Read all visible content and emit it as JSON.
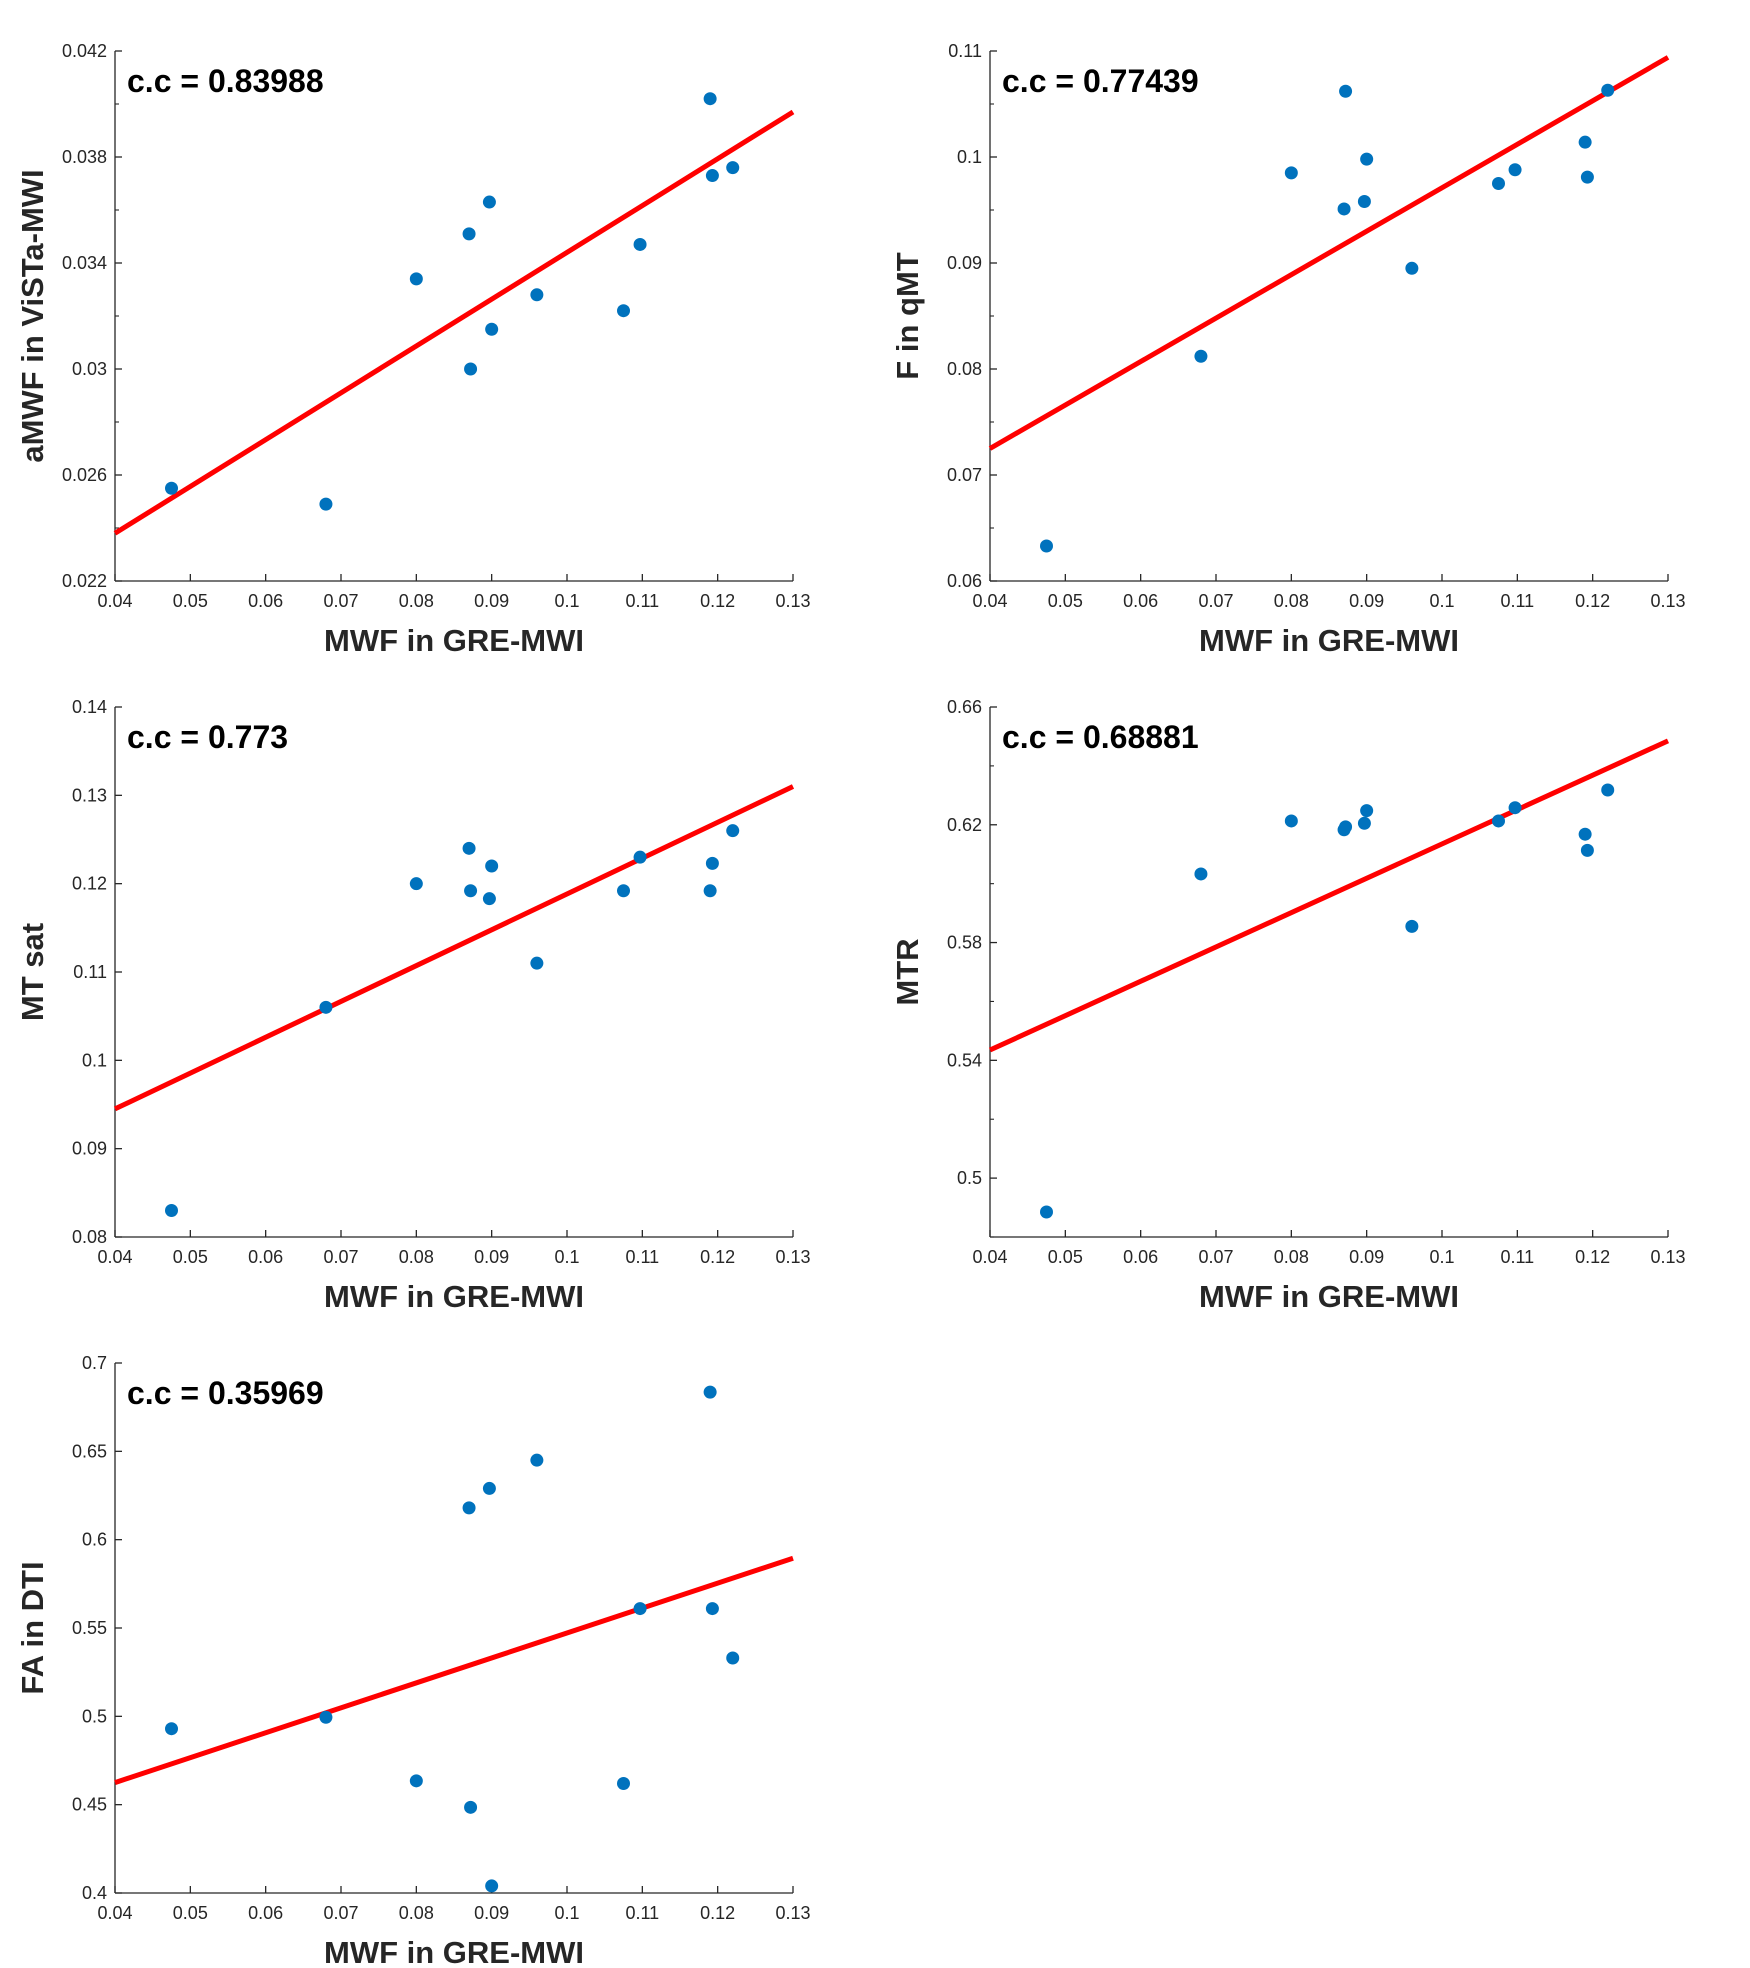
{
  "colors": {
    "point": "#0072BD",
    "fit": "#FF0000",
    "axis": "#262626"
  },
  "x_values": [
    0.0475,
    0.068,
    0.08,
    0.087,
    0.0872,
    0.0897,
    0.09,
    0.096,
    0.1075,
    0.1097,
    0.119,
    0.1193,
    0.122
  ],
  "chart_data": [
    {
      "type": "scatter",
      "title": "",
      "annotation": "c.c = 0.83988",
      "xlabel": "MWF in GRE-MWI",
      "ylabel": "aMWF in ViSTa-MWI",
      "xlim": [
        0.04,
        0.13
      ],
      "ylim": [
        0.022,
        0.042
      ],
      "xticks": [
        0.04,
        0.05,
        0.06,
        0.07,
        0.08,
        0.09,
        0.1,
        0.11,
        0.12,
        0.13
      ],
      "xtick_labels": [
        "0.04",
        "0.05",
        "0.06",
        "0.07",
        "0.08",
        "0.09",
        "0.1",
        "0.11",
        "0.12",
        "0.13"
      ],
      "yticks": [
        0.022,
        0.026,
        0.03,
        0.034,
        0.038,
        0.042
      ],
      "ytick_labels": [
        "0.022",
        "0.026",
        "0.03",
        "0.034",
        "0.038",
        "0.042"
      ],
      "yminor": [
        0.024,
        0.028,
        0.032,
        0.036,
        0.04
      ],
      "y": [
        0.0255,
        0.0249,
        0.0334,
        0.0351,
        0.03,
        0.0363,
        0.0315,
        0.0328,
        0.0322,
        0.0347,
        0.0402,
        0.0373,
        0.0376
      ],
      "fit": [
        [
          0.04,
          0.0238
        ],
        [
          0.13,
          0.0397
        ]
      ]
    },
    {
      "type": "scatter",
      "title": "",
      "annotation": "c.c = 0.77439",
      "xlabel": "MWF in GRE-MWI",
      "ylabel": "F in qMT",
      "xlim": [
        0.04,
        0.13
      ],
      "ylim": [
        0.06,
        0.11
      ],
      "xticks": [
        0.04,
        0.05,
        0.06,
        0.07,
        0.08,
        0.09,
        0.1,
        0.11,
        0.12,
        0.13
      ],
      "xtick_labels": [
        "0.04",
        "0.05",
        "0.06",
        "0.07",
        "0.08",
        "0.09",
        "0.1",
        "0.11",
        "0.12",
        "0.13"
      ],
      "yticks": [
        0.06,
        0.07,
        0.08,
        0.09,
        0.1,
        0.11
      ],
      "ytick_labels": [
        "0.06",
        "0.07",
        "0.08",
        "0.09",
        "0.1",
        "0.11"
      ],
      "yminor": [
        0.065,
        0.075,
        0.085,
        0.095,
        0.105
      ],
      "y": [
        0.0633,
        0.0812,
        0.0985,
        0.0951,
        0.1062,
        0.0958,
        0.0998,
        0.0895,
        0.0975,
        0.0988,
        0.1014,
        0.0981,
        0.1063
      ],
      "fit": [
        [
          0.04,
          0.0725
        ],
        [
          0.13,
          0.1094
        ]
      ]
    },
    {
      "type": "scatter",
      "title": "",
      "annotation": "c.c = 0.773",
      "xlabel": "MWF in GRE-MWI",
      "ylabel": "MT sat",
      "xlim": [
        0.04,
        0.13
      ],
      "ylim": [
        0.08,
        0.14
      ],
      "xticks": [
        0.04,
        0.05,
        0.06,
        0.07,
        0.08,
        0.09,
        0.1,
        0.11,
        0.12,
        0.13
      ],
      "xtick_labels": [
        "0.04",
        "0.05",
        "0.06",
        "0.07",
        "0.08",
        "0.09",
        "0.1",
        "0.11",
        "0.12",
        "0.13"
      ],
      "yticks": [
        0.08,
        0.09,
        0.1,
        0.11,
        0.12,
        0.13,
        0.14
      ],
      "ytick_labels": [
        "0.08",
        "0.09",
        "0.1",
        "0.11",
        "0.12",
        "0.13",
        "0.14"
      ],
      "yminor": [],
      "y": [
        0.083,
        0.106,
        0.12,
        0.124,
        0.1192,
        0.1183,
        0.122,
        0.111,
        0.1192,
        0.123,
        0.1192,
        0.1223,
        0.126
      ],
      "fit": [
        [
          0.04,
          0.0945
        ],
        [
          0.13,
          0.131
        ]
      ]
    },
    {
      "type": "scatter",
      "title": "",
      "annotation": "c.c = 0.68881",
      "xlabel": "MWF in GRE-MWI",
      "ylabel": "MTR",
      "xlim": [
        0.04,
        0.13
      ],
      "ylim": [
        0.48,
        0.66
      ],
      "xticks": [
        0.04,
        0.05,
        0.06,
        0.07,
        0.08,
        0.09,
        0.1,
        0.11,
        0.12,
        0.13
      ],
      "xtick_labels": [
        "0.04",
        "0.05",
        "0.06",
        "0.07",
        "0.08",
        "0.09",
        "0.1",
        "0.11",
        "0.12",
        "0.13"
      ],
      "yticks": [
        0.5,
        0.54,
        0.58,
        0.62,
        0.66
      ],
      "ytick_labels": [
        "0.5",
        "0.54",
        "0.58",
        "0.62",
        "0.66"
      ],
      "yminor": [
        0.48,
        0.52,
        0.56,
        0.6,
        0.64
      ],
      "y": [
        0.4885,
        0.6033,
        0.6213,
        0.6183,
        0.6193,
        0.6205,
        0.6248,
        0.5855,
        0.6213,
        0.6258,
        0.6168,
        0.6113,
        0.6318
      ],
      "fit": [
        [
          0.04,
          0.5435
        ],
        [
          0.13,
          0.6485
        ]
      ]
    },
    {
      "type": "scatter",
      "title": "",
      "annotation": "c.c = 0.35969",
      "xlabel": "MWF in GRE-MWI",
      "ylabel": "FA in DTI",
      "xlim": [
        0.04,
        0.13
      ],
      "ylim": [
        0.4,
        0.7
      ],
      "xticks": [
        0.04,
        0.05,
        0.06,
        0.07,
        0.08,
        0.09,
        0.1,
        0.11,
        0.12,
        0.13
      ],
      "xtick_labels": [
        "0.04",
        "0.05",
        "0.06",
        "0.07",
        "0.08",
        "0.09",
        "0.1",
        "0.11",
        "0.12",
        "0.13"
      ],
      "yticks": [
        0.4,
        0.45,
        0.5,
        0.55,
        0.6,
        0.65,
        0.7
      ],
      "ytick_labels": [
        "0.4",
        "0.45",
        "0.5",
        "0.55",
        "0.6",
        "0.65",
        "0.7"
      ],
      "yminor": [],
      "y": [
        0.493,
        0.4995,
        0.4635,
        0.618,
        0.4485,
        0.629,
        0.404,
        0.645,
        0.462,
        0.561,
        0.6835,
        0.561,
        0.533
      ],
      "fit": [
        [
          0.04,
          0.4625
        ],
        [
          0.13,
          0.5895
        ]
      ]
    }
  ]
}
